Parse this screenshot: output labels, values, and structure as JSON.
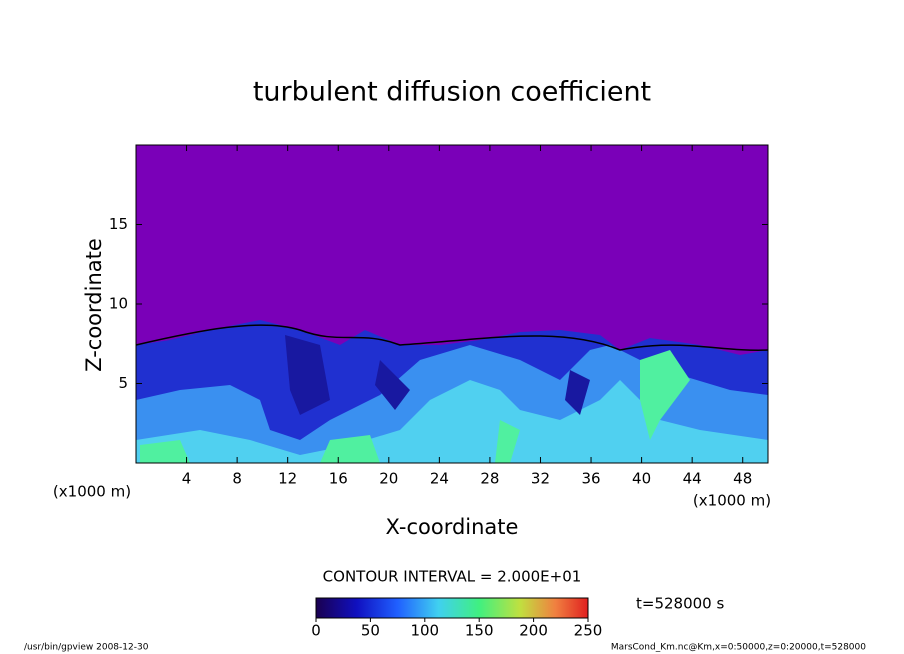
{
  "chart_data": {
    "type": "contour",
    "title": "turbulent diffusion coefficient",
    "xlabel": "X-coordinate",
    "ylabel": "Z-coordinate",
    "x_unit": "(x1000 m)",
    "y_unit": "(x1000 m)",
    "xlim": [
      0,
      50
    ],
    "xticks": [
      4,
      8,
      12,
      16,
      20,
      24,
      28,
      32,
      36,
      40,
      44,
      48
    ],
    "ylim": [
      0,
      20
    ],
    "yticks": [
      5,
      10,
      15
    ],
    "contour_note": "CONTOUR INTERVAL = 2.000E+01",
    "clim": [
      0,
      250
    ],
    "cticks": [
      0,
      50,
      100,
      150,
      200,
      250
    ],
    "time_label": "t=528000 s",
    "footer_left": "/usr/bin/gpview   2008-12-30",
    "footer_right": "MarsCond_Km.nc@Km,x=0:50000,z=0:20000,t=528000"
  }
}
